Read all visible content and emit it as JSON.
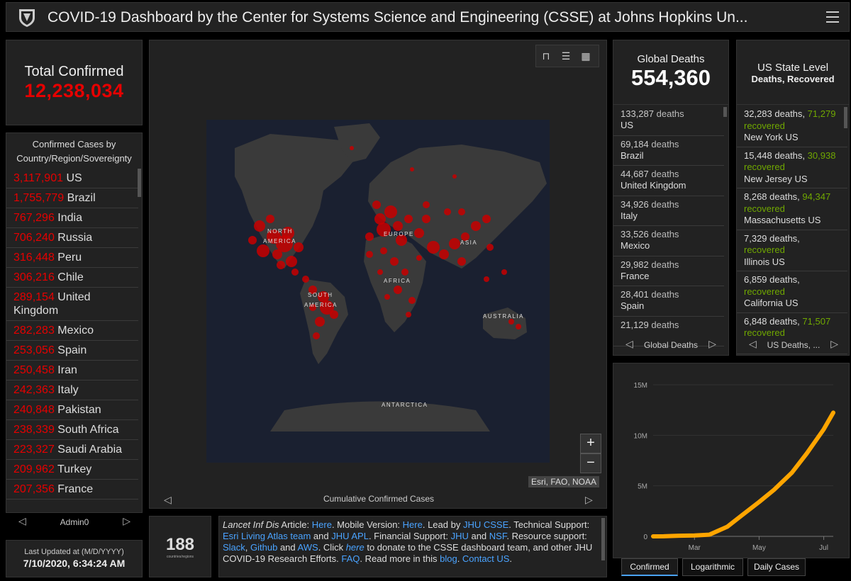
{
  "header": {
    "title": "COVID-19 Dashboard by the Center for Systems Science and Engineering (CSSE) at Johns Hopkins Un..."
  },
  "total_confirmed": {
    "label": "Total Confirmed",
    "value": "12,238,034"
  },
  "country_list": {
    "header": "Confirmed Cases by Country/Region/Sovereignty",
    "items": [
      {
        "num": "3,117,901",
        "name": "US"
      },
      {
        "num": "1,755,779",
        "name": "Brazil"
      },
      {
        "num": "767,296",
        "name": "India"
      },
      {
        "num": "706,240",
        "name": "Russia"
      },
      {
        "num": "316,448",
        "name": "Peru"
      },
      {
        "num": "306,216",
        "name": "Chile"
      },
      {
        "num": "289,154",
        "name": "United Kingdom"
      },
      {
        "num": "282,283",
        "name": "Mexico"
      },
      {
        "num": "253,056",
        "name": "Spain"
      },
      {
        "num": "250,458",
        "name": "Iran"
      },
      {
        "num": "242,363",
        "name": "Italy"
      },
      {
        "num": "240,848",
        "name": "Pakistan"
      },
      {
        "num": "238,339",
        "name": "South Africa"
      },
      {
        "num": "223,327",
        "name": "Saudi Arabia"
      },
      {
        "num": "209,962",
        "name": "Turkey"
      },
      {
        "num": "207,356",
        "name": "France"
      }
    ],
    "pager_label": "Admin0"
  },
  "last_updated": {
    "label": "Last Updated at (M/D/YYYY)",
    "value": "7/10/2020, 6:34:24 AM"
  },
  "map": {
    "labels": [
      "NORTH",
      "AMERICA",
      "EUROPE",
      "ASIA",
      "AFRICA",
      "SOUTH",
      "AMERICA",
      "AUSTRALIA",
      "ANTARCTICA"
    ],
    "attribution": "Esri, FAO, NOAA",
    "caption": "Cumulative Confirmed Cases",
    "zoom_in": "+",
    "zoom_out": "−",
    "colors": {
      "land": "#3a3a3a",
      "ocean": "#1a2030",
      "dot": "#c80000"
    }
  },
  "country_count": {
    "value": "188",
    "label": "countries/regions"
  },
  "info": {
    "t1": "Lancet Inf Dis",
    "t2": " Article: ",
    "l_here1": "Here",
    "t3": ". Mobile Version: ",
    "l_here2": "Here",
    "t4": ". Lead by ",
    "l_jhucsse": "JHU CSSE",
    "t5": ". Technical Support: ",
    "l_esri": "Esri Living Atlas team",
    "t6": " and ",
    "l_jhuapl": "JHU APL",
    "t7": ". Financial Support: ",
    "l_jhu": "JHU",
    "t8": " and ",
    "l_nsf": "NSF",
    "t9": ". Resource support: ",
    "l_slack": "Slack",
    "t10": ", ",
    "l_github": "Github",
    "t11": " and ",
    "l_aws": "AWS",
    "t12": ". Click ",
    "l_here3": "here",
    "t13": " to donate to the CSSE dashboard team, and other JHU COVID-19 Research Efforts. ",
    "l_faq": "FAQ",
    "t14": ". Read more in this ",
    "l_blog": "blog",
    "t15": ". ",
    "l_contact": "Contact US",
    "t16": "."
  },
  "global_deaths": {
    "label": "Global Deaths",
    "value": "554,360",
    "items": [
      {
        "num": "133,287",
        "word": "deaths",
        "name": "US"
      },
      {
        "num": "69,184",
        "word": "deaths",
        "name": "Brazil"
      },
      {
        "num": "44,687",
        "word": "deaths",
        "name": "United Kingdom"
      },
      {
        "num": "34,926",
        "word": "deaths",
        "name": "Italy"
      },
      {
        "num": "33,526",
        "word": "deaths",
        "name": "Mexico"
      },
      {
        "num": "29,982",
        "word": "deaths",
        "name": "France"
      },
      {
        "num": "28,401",
        "word": "deaths",
        "name": "Spain"
      },
      {
        "num": "21,129",
        "word": "deaths",
        "name": ""
      }
    ],
    "pager_label": "Global Deaths"
  },
  "us_state": {
    "label": "US State Level",
    "sub": "Deaths, Recovered",
    "items": [
      {
        "deaths": "32,283 deaths,",
        "rec_num": "71,279",
        "rec_word": "recovered",
        "name": "New York US"
      },
      {
        "deaths": "15,448 deaths,",
        "rec_num": "30,938",
        "rec_word": "recovered",
        "name": "New Jersey US"
      },
      {
        "deaths": "8,268 deaths,",
        "rec_num": "94,347",
        "rec_word": "recovered",
        "name": "Massachusetts US"
      },
      {
        "deaths": "7,329 deaths,",
        "rec_num": "",
        "rec_word": "recovered",
        "name": "Illinois US"
      },
      {
        "deaths": "6,859 deaths,",
        "rec_num": "",
        "rec_word": "recovered",
        "name": "California US"
      },
      {
        "deaths": "6,848 deaths,",
        "rec_num": "71,507",
        "rec_word": "recovered",
        "name": ""
      }
    ],
    "pager_label": "US Deaths, ..."
  },
  "chart_tabs": [
    "Confirmed",
    "Logarithmic",
    "Daily Cases"
  ],
  "chart_data": {
    "type": "line",
    "title": "",
    "xlabel": "",
    "ylabel": "",
    "x_ticks": [
      "Mar",
      "May",
      "Jul"
    ],
    "y_ticks": [
      "0",
      "5M",
      "10M",
      "15M"
    ],
    "ylim": [
      0,
      15000000
    ],
    "series": [
      {
        "color": "#ffa500",
        "x": [
          "2020-01-22",
          "2020-02-01",
          "2020-02-15",
          "2020-03-01",
          "2020-03-15",
          "2020-04-01",
          "2020-04-15",
          "2020-05-01",
          "2020-05-15",
          "2020-06-01",
          "2020-06-15",
          "2020-07-01",
          "2020-07-10"
        ],
        "values": [
          0,
          10000,
          60000,
          88000,
          170000,
          950000,
          2100000,
          3400000,
          4600000,
          6300000,
          8200000,
          10600000,
          12238034
        ]
      }
    ]
  }
}
